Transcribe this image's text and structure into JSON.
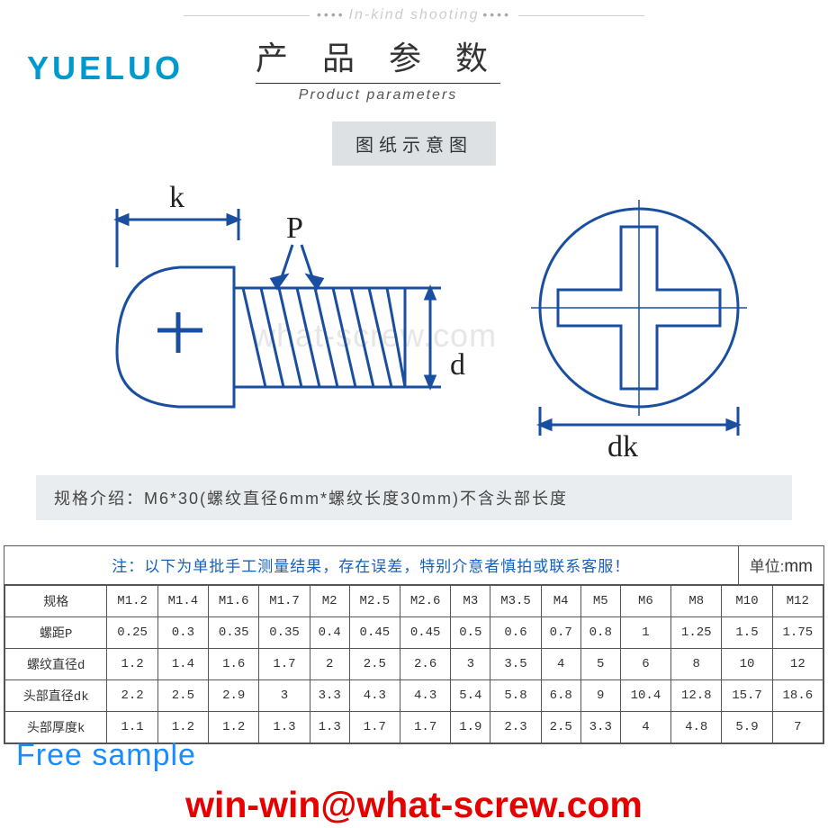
{
  "header": {
    "script_text": "In-kind shooting",
    "logo": "YUELUO",
    "logo_color": "#0099cc",
    "title_cn": "产 品 参 数",
    "title_en": "Product parameters",
    "subtitle": "图纸示意图"
  },
  "diagram": {
    "labels": {
      "k": "k",
      "P": "P",
      "d": "d",
      "dk": "dk"
    },
    "stroke_color": "#1a4fa0",
    "watermark": "what-screw.com",
    "spec_text": "规格介绍：M6*30(螺纹直径6mm*螺纹长度30mm)不含头部长度"
  },
  "table": {
    "note": "注：以下为单批手工测量结果，存在误差，特别介意者慎拍或联系客服！",
    "unit_label": "单位:",
    "unit_value": "mm",
    "note_color": "#1560bd",
    "border_color": "#555555",
    "columns": [
      "规格",
      "M1.2",
      "M1.4",
      "M1.6",
      "M1.7",
      "M2",
      "M2.5",
      "M2.6",
      "M3",
      "M3.5",
      "M4",
      "M5",
      "M6",
      "M8",
      "M10",
      "M12"
    ],
    "rows": [
      [
        "螺距P",
        "0.25",
        "0.3",
        "0.35",
        "0.35",
        "0.4",
        "0.45",
        "0.45",
        "0.5",
        "0.6",
        "0.7",
        "0.8",
        "1",
        "1.25",
        "1.5",
        "1.75"
      ],
      [
        "螺纹直径d",
        "1.2",
        "1.4",
        "1.6",
        "1.7",
        "2",
        "2.5",
        "2.6",
        "3",
        "3.5",
        "4",
        "5",
        "6",
        "8",
        "10",
        "12"
      ],
      [
        "头部直径dk",
        "2.2",
        "2.5",
        "2.9",
        "3",
        "3.3",
        "4.3",
        "4.3",
        "5.4",
        "5.8",
        "6.8",
        "9",
        "10.4",
        "12.8",
        "15.7",
        "18.6"
      ],
      [
        "头部厚度k",
        "1.1",
        "1.2",
        "1.2",
        "1.3",
        "1.3",
        "1.7",
        "1.7",
        "1.9",
        "2.3",
        "2.5",
        "3.3",
        "4",
        "4.8",
        "5.9",
        "7"
      ]
    ]
  },
  "overlays": {
    "free_sample": "Free sample",
    "free_sample_color": "#1a8cff",
    "email": "win-win@what-screw.com",
    "email_color": "#e60000"
  }
}
